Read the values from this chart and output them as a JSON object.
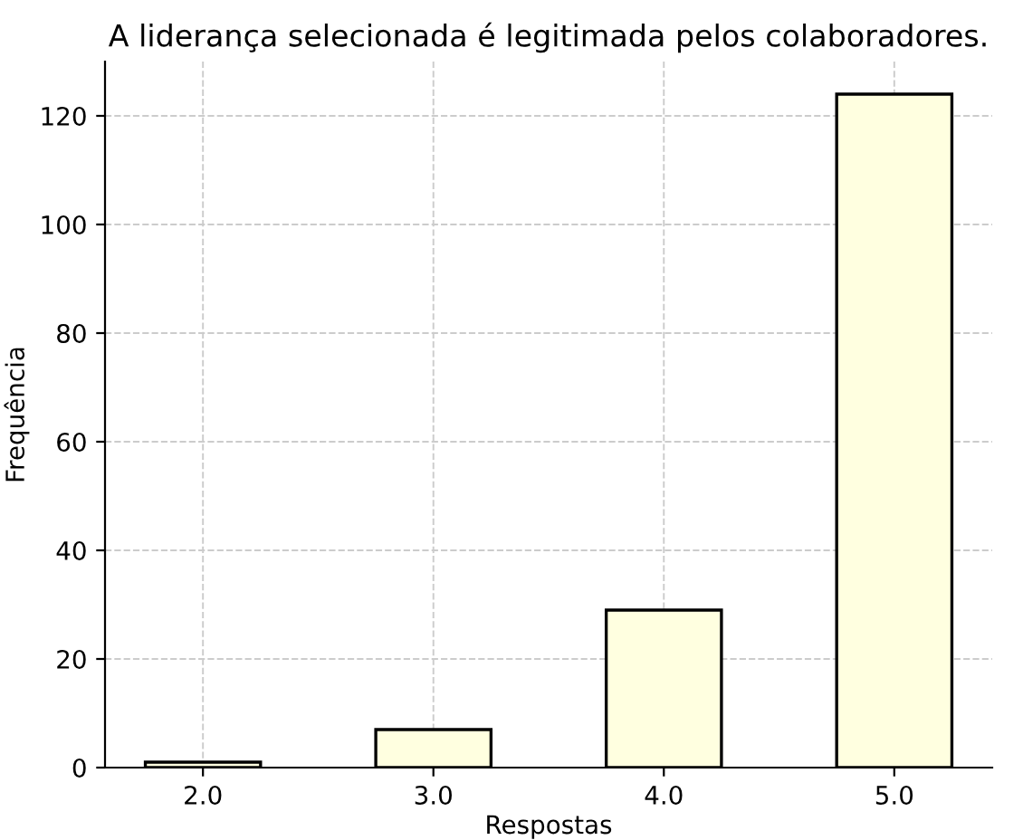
{
  "chart_data": {
    "type": "bar",
    "title": "A liderança selecionada é legitimada pelos colaboradores.",
    "xlabel": "Respostas",
    "ylabel": "Frequência",
    "categories": [
      "2.0",
      "3.0",
      "4.0",
      "5.0"
    ],
    "values": [
      1,
      7,
      29,
      124
    ],
    "color": "#ffffe0",
    "ylim": [
      0,
      130
    ],
    "yticks": [
      0,
      20,
      40,
      60,
      80,
      100,
      120
    ],
    "grid": true
  }
}
